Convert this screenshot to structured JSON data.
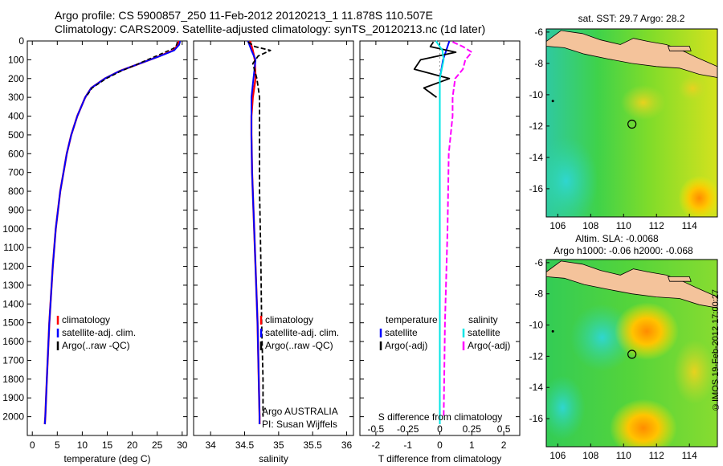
{
  "header": {
    "line1": "Argo profile: CS 5900857_250 11-Feb-2012 20120213_1 11.878S 110.507E",
    "line2": "Climatology: CARS2009. Satellite-adjusted climatology: synTS_20120213.nc (1d later)"
  },
  "credit": "©IMOS 19-Feb-2012 17:00:27",
  "colors": {
    "climatology": "#ff0000",
    "satellite": "#0000ff",
    "argo": "#000000",
    "sat_diff": "#00e5e5",
    "argo_diff": "#ff00ff",
    "land": "#f4c39b"
  },
  "chart_data": [
    {
      "type": "line",
      "name": "temperature-profile",
      "xlabel": "temperature (deg C)",
      "ylabel": "",
      "xlim": [
        -1,
        31
      ],
      "ylim": [
        2100,
        0
      ],
      "xticks": [
        0,
        5,
        10,
        15,
        20,
        25,
        30
      ],
      "yticks": [
        0,
        100,
        200,
        300,
        400,
        500,
        600,
        700,
        800,
        900,
        1000,
        1100,
        1200,
        1300,
        1400,
        1500,
        1600,
        1700,
        1800,
        1900,
        2000
      ],
      "legend": [
        "climatology",
        "satellite-adj. clim.",
        "Argo(..raw -QC)"
      ],
      "series": [
        {
          "name": "climatology",
          "depth": [
            0,
            20,
            50,
            80,
            120,
            160,
            200,
            250,
            300,
            400,
            500,
            600,
            800,
            1000,
            1200,
            1500,
            1800,
            2000,
            2040
          ],
          "values": [
            29.3,
            29.2,
            28.2,
            25.5,
            21.5,
            17.5,
            14.5,
            11.8,
            10.6,
            9.0,
            7.8,
            6.9,
            5.6,
            4.7,
            4.1,
            3.4,
            2.9,
            2.6,
            2.5
          ]
        },
        {
          "name": "satellite-adj. clim.",
          "depth": [
            0,
            20,
            50,
            80,
            120,
            160,
            200,
            250,
            300,
            400,
            500,
            600,
            800,
            1000,
            1200,
            1500,
            1800,
            2000,
            2040
          ],
          "values": [
            29.6,
            29.4,
            28.4,
            25.6,
            21.5,
            17.5,
            14.5,
            11.8,
            10.6,
            9.0,
            7.8,
            6.9,
            5.6,
            4.7,
            4.1,
            3.4,
            2.9,
            2.6,
            2.5
          ]
        },
        {
          "name": "Argo(..raw -QC)",
          "depth": [
            5,
            20,
            40,
            60,
            80,
            100,
            130,
            160,
            200,
            250,
            300
          ],
          "values": [
            29.0,
            28.9,
            28.2,
            26.5,
            24.8,
            23.0,
            20.5,
            17.8,
            14.8,
            12.0,
            10.7
          ]
        }
      ]
    },
    {
      "type": "line",
      "name": "salinity-profile",
      "xlabel": "salinity",
      "ylabel": "",
      "xlim": [
        33.75,
        36.1
      ],
      "ylim": [
        2100,
        0
      ],
      "xticks": [
        34,
        34.5,
        35,
        35.5,
        36
      ],
      "legend": [
        "climatology",
        "satellite-adj. clim.",
        "Argo(..raw -QC)"
      ],
      "annotations": [
        "Argo AUSTRALIA",
        "PI: Susan Wijffels"
      ],
      "series": [
        {
          "name": "climatology",
          "depth": [
            0,
            50,
            100,
            200,
            300,
            400,
            500,
            700,
            1000,
            1500,
            2000,
            2040
          ],
          "values": [
            34.58,
            34.62,
            34.65,
            34.66,
            34.62,
            34.6,
            34.6,
            34.61,
            34.64,
            34.69,
            34.72,
            34.72
          ]
        },
        {
          "name": "satellite-adj. clim.",
          "depth": [
            0,
            50,
            100,
            200,
            300,
            400,
            500,
            700,
            1000,
            1500,
            2000,
            2040
          ],
          "values": [
            34.55,
            34.6,
            34.66,
            34.63,
            34.6,
            34.6,
            34.6,
            34.61,
            34.64,
            34.69,
            34.72,
            34.72
          ]
        },
        {
          "name": "Argo(..raw -QC)",
          "depth": [
            5,
            30,
            50,
            80,
            120,
            200,
            300,
            400,
            600,
            800,
            1000,
            1200,
            1500,
            1800,
            2000
          ],
          "values": [
            34.55,
            34.65,
            34.88,
            34.7,
            34.62,
            34.68,
            34.72,
            34.72,
            34.72,
            34.72,
            34.73,
            34.74,
            34.75,
            34.77,
            34.77
          ]
        }
      ]
    },
    {
      "type": "line",
      "name": "difference-profile",
      "xlabel": "T difference from climatology",
      "top_axis_label": "S difference from climatology",
      "xlim": [
        -2.5,
        2.5
      ],
      "ylim": [
        2100,
        0
      ],
      "xticks": [
        -2,
        -1,
        0,
        1,
        2
      ],
      "xticklabels": [
        "-2",
        "-1",
        "0",
        "1",
        "2"
      ],
      "s_xticks": [
        -0.5,
        -0.25,
        0,
        0.25,
        0.5
      ],
      "s_xticklabels": [
        "-0.5",
        "-0.25",
        "0",
        "0.25",
        "0.5"
      ],
      "legend_temperature": {
        "title": "temperature",
        "items": [
          "satellite",
          "Argo(-adj)"
        ]
      },
      "legend_salinity": {
        "title": "salinity",
        "items": [
          "satellite",
          "Argo(-adj)"
        ]
      },
      "series": [
        {
          "name": "temperature satellite",
          "depth": [
            0,
            50,
            100,
            200,
            300,
            400,
            600,
            1000,
            2040
          ],
          "values": [
            0.3,
            0.2,
            0.1,
            0.0,
            0.0,
            0.0,
            0.0,
            0.0,
            0.0
          ]
        },
        {
          "name": "temperature Argo(-adj)",
          "depth": [
            5,
            30,
            60,
            100,
            150,
            200,
            250,
            300
          ],
          "values": [
            -0.2,
            -0.3,
            0.5,
            -0.6,
            -0.8,
            0.3,
            -0.5,
            -0.1
          ]
        },
        {
          "name": "salinity satellite",
          "depth": [
            0,
            50,
            100,
            200,
            300,
            500,
            1000,
            2040
          ],
          "values": [
            -0.03,
            0.02,
            0.03,
            0.0,
            0.0,
            0.0,
            0.0,
            0.0
          ]
        },
        {
          "name": "salinity Argo(-adj)",
          "depth": [
            5,
            30,
            60,
            100,
            150,
            200,
            300,
            400,
            600,
            1000,
            1500,
            2000
          ],
          "values": [
            0.1,
            0.18,
            0.25,
            0.2,
            0.18,
            0.12,
            0.1,
            0.1,
            0.07,
            0.06,
            0.04,
            0.03
          ]
        }
      ]
    },
    {
      "type": "heatmap",
      "name": "sst-map",
      "title": "sat. SST: 29.7 Argo: 28.2",
      "xlim": [
        105.3,
        115.7
      ],
      "ylim": [
        -17.8,
        -5.8
      ],
      "xticks": [
        106,
        108,
        110,
        112,
        114
      ],
      "yticks": [
        -6,
        -8,
        -10,
        -12,
        -14,
        -16
      ],
      "marker": {
        "lon": 110.507,
        "lat": -11.878
      }
    },
    {
      "type": "heatmap",
      "name": "sla-map",
      "title_line1": "Altim. SLA: -0.0068",
      "title_line2": "Argo h1000: -0.06 h2000: -0.068",
      "xlim": [
        105.3,
        115.7
      ],
      "ylim": [
        -17.8,
        -5.8
      ],
      "xticks": [
        106,
        108,
        110,
        112,
        114
      ],
      "yticks": [
        -6,
        -8,
        -10,
        -12,
        -14,
        -16
      ],
      "marker": {
        "lon": 110.507,
        "lat": -11.878
      }
    }
  ]
}
